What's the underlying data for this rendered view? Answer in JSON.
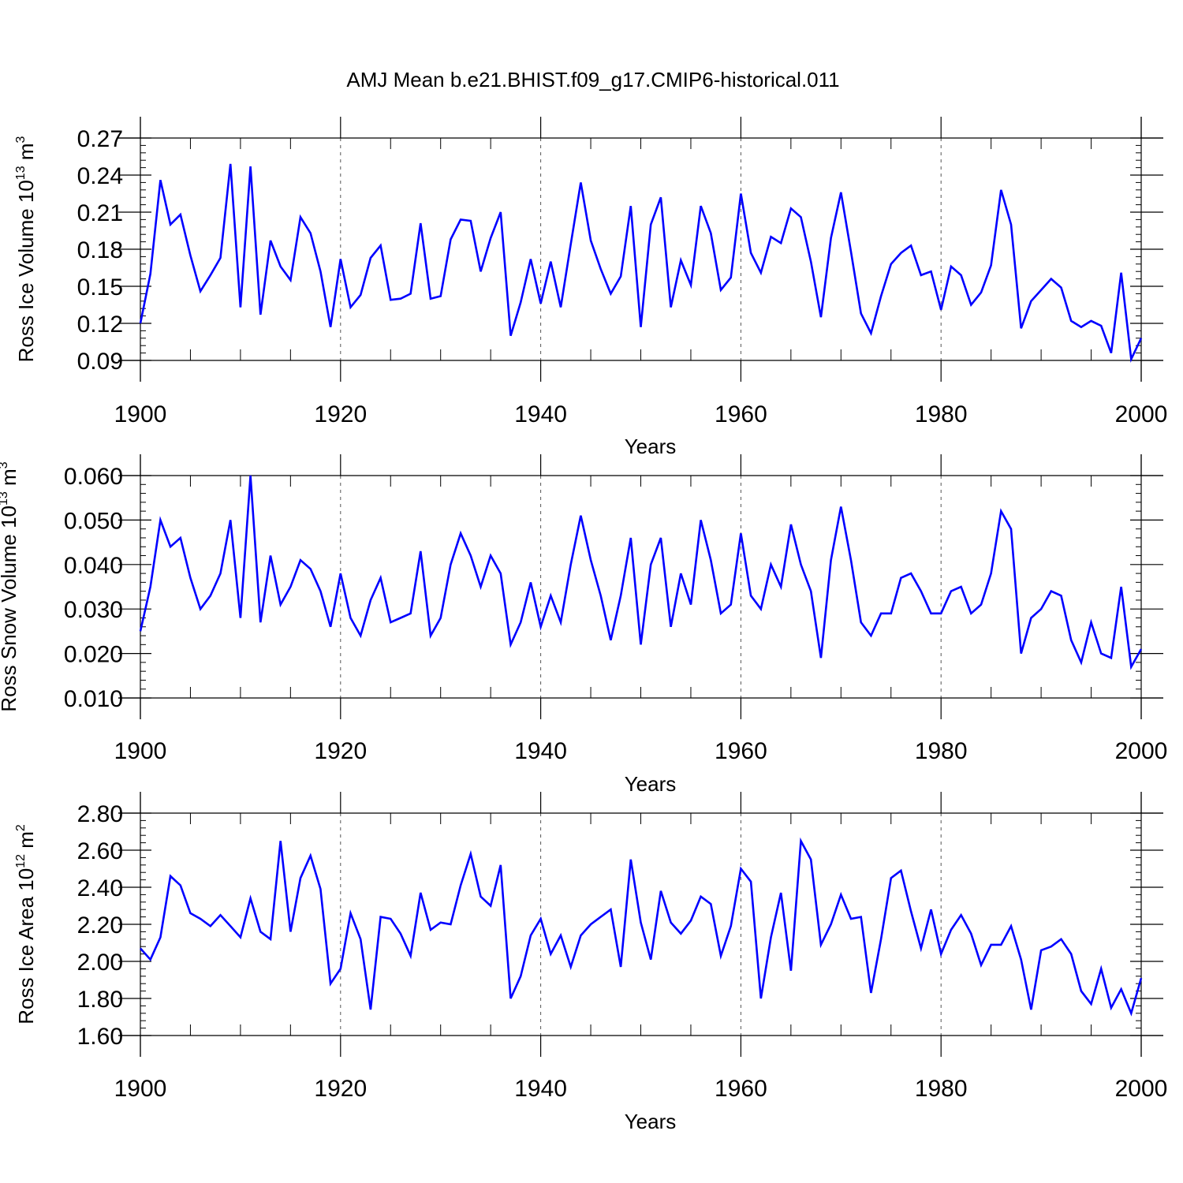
{
  "figure": {
    "title": "AMJ Mean b.e21.BHIST.f09_g17.CMIP6-historical.011"
  },
  "chart_data": [
    {
      "type": "line",
      "id": "ice-volume",
      "xlabel": "Years",
      "ylabel_main": "Ross Ice Volume 10",
      "ylabel_exp": "13",
      "ylabel_unit": " m",
      "ylabel_unit_exp": "3",
      "xlim": [
        1900,
        2000
      ],
      "ylim": [
        0.09,
        0.27
      ],
      "xticks": [
        1900,
        1920,
        1940,
        1960,
        1980,
        2000
      ],
      "yticks": [
        "0.09",
        "0.12",
        "0.15",
        "0.18",
        "0.21",
        "0.24",
        "0.27"
      ],
      "grid": "dashed vertical at 1920, 1940, 1960, 1980",
      "line_color": "#0000ff",
      "x_start": 1900,
      "values": [
        0.12,
        0.16,
        0.236,
        0.2,
        0.208,
        0.175,
        0.146,
        0.159,
        0.173,
        0.249,
        0.133,
        0.247,
        0.127,
        0.187,
        0.166,
        0.155,
        0.206,
        0.193,
        0.162,
        0.117,
        0.172,
        0.133,
        0.143,
        0.173,
        0.183,
        0.139,
        0.14,
        0.144,
        0.201,
        0.14,
        0.142,
        0.188,
        0.204,
        0.203,
        0.162,
        0.189,
        0.21,
        0.11,
        0.137,
        0.172,
        0.136,
        0.17,
        0.133,
        0.184,
        0.234,
        0.187,
        0.164,
        0.144,
        0.158,
        0.215,
        0.117,
        0.2,
        0.222,
        0.133,
        0.171,
        0.151,
        0.215,
        0.193,
        0.147,
        0.157,
        0.225,
        0.177,
        0.161,
        0.19,
        0.185,
        0.213,
        0.206,
        0.17,
        0.125,
        0.189,
        0.226,
        0.178,
        0.128,
        0.112,
        0.142,
        0.168,
        0.177,
        0.183,
        0.159,
        0.162,
        0.131,
        0.166,
        0.159,
        0.135,
        0.145,
        0.167,
        0.228,
        0.2,
        0.116,
        0.138,
        0.147,
        0.156,
        0.149,
        0.122,
        0.117,
        0.122,
        0.118,
        0.096,
        0.161,
        0.091,
        0.108
      ]
    },
    {
      "type": "line",
      "id": "snow-volume",
      "xlabel": "Years",
      "ylabel_main": "Ross Snow Volume 10",
      "ylabel_exp": "13",
      "ylabel_unit": " m",
      "ylabel_unit_exp": "3",
      "xlim": [
        1900,
        2000
      ],
      "ylim": [
        0.01,
        0.06
      ],
      "xticks": [
        1900,
        1920,
        1940,
        1960,
        1980,
        2000
      ],
      "yticks": [
        "0.010",
        "0.020",
        "0.030",
        "0.040",
        "0.050",
        "0.060"
      ],
      "grid": "dashed vertical at 1920, 1940, 1960, 1980",
      "line_color": "#0000ff",
      "x_start": 1900,
      "values": [
        0.025,
        0.035,
        0.05,
        0.044,
        0.046,
        0.037,
        0.03,
        0.033,
        0.038,
        0.05,
        0.028,
        0.06,
        0.027,
        0.042,
        0.031,
        0.035,
        0.041,
        0.039,
        0.034,
        0.026,
        0.038,
        0.028,
        0.024,
        0.032,
        0.037,
        0.027,
        0.028,
        0.029,
        0.043,
        0.024,
        0.028,
        0.04,
        0.047,
        0.042,
        0.035,
        0.042,
        0.038,
        0.022,
        0.027,
        0.036,
        0.026,
        0.033,
        0.027,
        0.04,
        0.051,
        0.041,
        0.033,
        0.023,
        0.033,
        0.046,
        0.022,
        0.04,
        0.046,
        0.026,
        0.038,
        0.031,
        0.05,
        0.041,
        0.029,
        0.031,
        0.047,
        0.033,
        0.03,
        0.04,
        0.035,
        0.049,
        0.04,
        0.034,
        0.019,
        0.041,
        0.053,
        0.041,
        0.027,
        0.024,
        0.029,
        0.029,
        0.037,
        0.038,
        0.034,
        0.029,
        0.029,
        0.034,
        0.035,
        0.029,
        0.031,
        0.038,
        0.052,
        0.048,
        0.02,
        0.028,
        0.03,
        0.034,
        0.033,
        0.023,
        0.018,
        0.027,
        0.02,
        0.019,
        0.035,
        0.017,
        0.021
      ]
    },
    {
      "type": "line",
      "id": "ice-area",
      "xlabel": "Years",
      "ylabel_main": "Ross Ice Area 10",
      "ylabel_exp": "12",
      "ylabel_unit": " m",
      "ylabel_unit_exp": "2",
      "xlim": [
        1900,
        2000
      ],
      "ylim": [
        1.6,
        2.8
      ],
      "xticks": [
        1900,
        1920,
        1940,
        1960,
        1980,
        2000
      ],
      "yticks": [
        "1.60",
        "1.80",
        "2.00",
        "2.20",
        "2.40",
        "2.60",
        "2.80"
      ],
      "grid": "dashed vertical at 1920, 1940, 1960, 1980",
      "line_color": "#0000ff",
      "x_start": 1900,
      "values": [
        2.07,
        2.01,
        2.13,
        2.46,
        2.41,
        2.26,
        2.23,
        2.19,
        2.25,
        2.19,
        2.13,
        2.34,
        2.16,
        2.12,
        2.65,
        2.16,
        2.45,
        2.57,
        2.39,
        1.88,
        1.96,
        2.26,
        2.12,
        1.74,
        2.24,
        2.23,
        2.15,
        2.03,
        2.37,
        2.17,
        2.21,
        2.2,
        2.41,
        2.58,
        2.35,
        2.3,
        2.52,
        1.8,
        1.92,
        2.14,
        2.23,
        2.04,
        2.14,
        1.97,
        2.14,
        2.2,
        2.24,
        2.28,
        1.97,
        2.55,
        2.21,
        2.01,
        2.38,
        2.21,
        2.15,
        2.22,
        2.35,
        2.31,
        2.03,
        2.19,
        2.5,
        2.43,
        1.8,
        2.13,
        2.37,
        1.95,
        2.65,
        2.55,
        2.09,
        2.2,
        2.36,
        2.23,
        2.24,
        1.83,
        2.12,
        2.45,
        2.49,
        2.27,
        2.07,
        2.28,
        2.04,
        2.17,
        2.25,
        2.15,
        1.98,
        2.09,
        2.09,
        2.19,
        2.01,
        1.74,
        2.06,
        2.08,
        2.12,
        2.04,
        1.84,
        1.77,
        1.96,
        1.75,
        1.85,
        1.72,
        1.91
      ]
    }
  ]
}
